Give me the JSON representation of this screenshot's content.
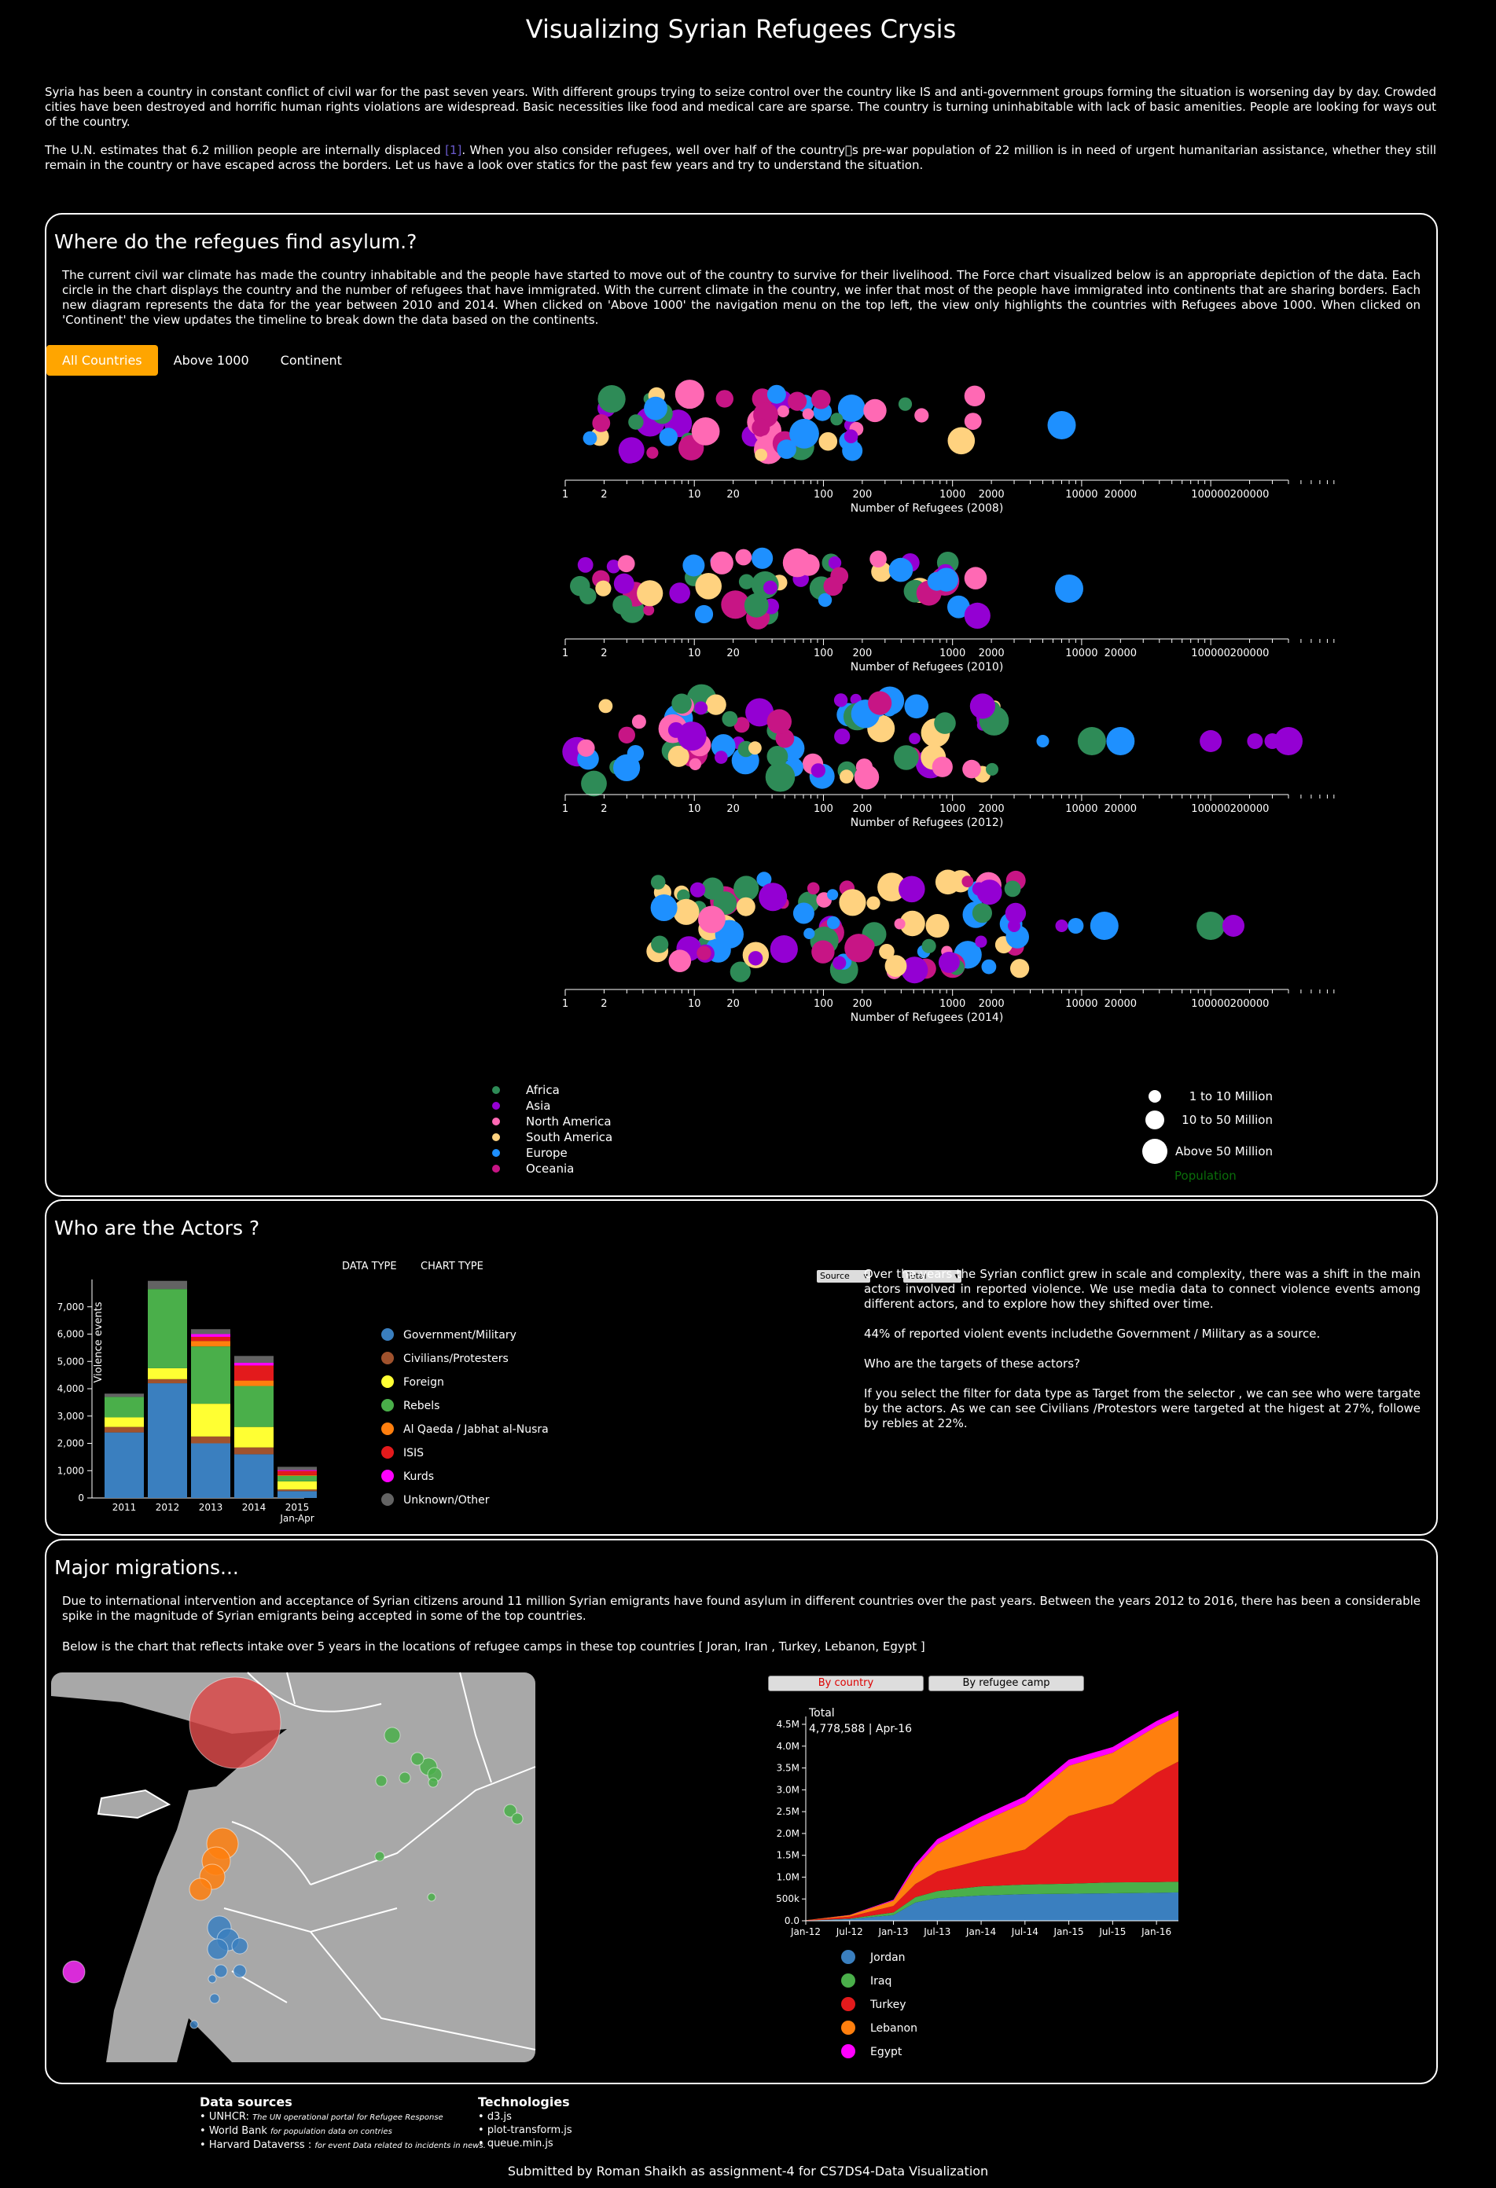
{
  "page": {
    "title": "Visualizing Syrian Refugees Crysis",
    "intro1": "Syria has been a country in constant conflict of civil war for the past seven years. With different groups trying to seize control over the country like IS and anti-government groups forming the situation is worsening day by day. Crowded cities have been destroyed and horrific human rights violations are widespread. Basic necessities like food and medical care are sparse. The country is turning uninhabitable with lack of basic amenities. People are looking for ways out of the country.",
    "intro2_a": "The U.N. estimates that 6.2 million people are internally displaced ",
    "intro2_link": "[1]",
    "intro2_b": ". When you also consider refugees, well over half of the country\u0000s pre-war population of 22 million is in need of urgent humanitarian assistance, whether they still remain in the country or have escaped across the borders. Let us have a look over statics for the past few years and try to understand the situation."
  },
  "asylum": {
    "title": "Where do the refegues find asylum.?",
    "description": "The current civil war climate has made the country inhabitable and the people have started to move out of the country to survive for their livelihood. The Force chart visualized below is an appropriate depiction of the data. Each circle in the chart displays the country and the number of refugees that have immigrated. With the current climate in the country, we infer that most of the people have immigrated into continents that are sharing borders. Each new diagram represents the data for the year between 2010 and 2014. When clicked on 'Above 1000' the navigation menu on the top left, the view only highlights the countries with Refugees above 1000. When clicked on 'Continent' the view updates the timeline to break down the data based on the continents.",
    "tabs": [
      "All Countries",
      "Above 1000",
      "Continent"
    ],
    "axis_ticks": [
      "1",
      "2",
      "10",
      "20",
      "100",
      "200",
      "1000",
      "2000",
      "10000",
      "20000",
      "100000",
      "200000"
    ],
    "axis_labels": [
      "Number of Refugees (2008)",
      "Number of Refugees (2010)",
      "Number of Refugees (2012)",
      "Number of Refugees (2014)"
    ],
    "continents": [
      {
        "name": "Africa",
        "color": "#2e8b57"
      },
      {
        "name": "Asia",
        "color": "#9400d3"
      },
      {
        "name": "North America",
        "color": "#ff69b4"
      },
      {
        "name": "South America",
        "color": "#ffd27f"
      },
      {
        "name": "Europe",
        "color": "#1e90ff"
      },
      {
        "name": "Oceania",
        "color": "#c71585"
      }
    ],
    "size_legend": [
      "1 to 10 Million",
      "10 to 50 Million",
      "Above 50 Million"
    ],
    "size_legend_title": "Population"
  },
  "actors": {
    "title": "Who are the Actors ?",
    "data_type_label": "DATA TYPE",
    "chart_type_label": "CHART TYPE",
    "data_type_value": "Source",
    "chart_type_value": "Total",
    "p1": "Over the years the Syrian conflict grew in scale and complexity, there was a shift in the main actors involved in reported violence. We use media data to connect violence events among different actors, and to explore how they shifted over time.",
    "p2": "44% of reported violent events includethe Government / Military as a source.",
    "p3": "Who are the targets of these actors?",
    "p4": "If you select the filter for data type as Target from the selector , we can see who were targate by the actors. As we can see Civilians /Protestors were targeted at the higest at 27%, followe by rebles at 22%."
  },
  "migrations": {
    "title": "Major migrations...",
    "p1": "Due to international intervention and acceptance of Syrian citizens around 11 million Syrian emigrants have found asylum in different countries over the past years. Between the years 2012 to 2016, there has been a considerable spike in the magnitude of Syrian emigrants being accepted in some of the top countries.",
    "p2": "Below is the chart that reflects intake over 5 years in the locations of refugee camps in these top countries [ Joran, Iran , Turkey, Lebanon, Egypt ]",
    "btn_country": "By country",
    "btn_camp": "By refugee camp",
    "total_label": "Total",
    "total_value": "4,778,588 | Apr-16"
  },
  "footer": {
    "sources_title": "Data sources",
    "sources": [
      {
        "name": "UNHCR:",
        "note": "The UN operational portal for Refugee Response"
      },
      {
        "name": "World Bank",
        "note": "for population data on contries"
      },
      {
        "name": "Harvard Dataverss :",
        "note": "for event Data related to incidents in news."
      }
    ],
    "tech_title": "Technologies",
    "tech": [
      "d3.js",
      "plot-transform.js",
      "queue.min.js"
    ],
    "credits": "Submitted by Roman Shaikh as assignment-4 for CS7DS4-Data Visualization"
  },
  "chart_data": [
    {
      "type": "bar",
      "title": "",
      "ylabel": "Violence events",
      "categories": [
        "2011",
        "2012",
        "2013",
        "2014",
        "2015 Jan-Apr"
      ],
      "ylim": [
        0,
        8000
      ],
      "yticks": [
        "0",
        "1,000",
        "2,000",
        "3,000",
        "4,000",
        "5,000",
        "6,000",
        "7,000"
      ],
      "series": [
        {
          "name": "Government/Military",
          "color": "#3a7fbf",
          "values": [
            2400,
            4200,
            2000,
            1600,
            250
          ]
        },
        {
          "name": "Civilians/Protesters",
          "color": "#a0522d",
          "values": [
            200,
            150,
            250,
            250,
            60
          ]
        },
        {
          "name": "Foreign",
          "color": "#ffff33",
          "values": [
            350,
            400,
            1200,
            750,
            300
          ]
        },
        {
          "name": "Rebels",
          "color": "#4aaf4a",
          "values": [
            750,
            2900,
            2100,
            1500,
            200
          ]
        },
        {
          "name": "Al Qaeda / Jabhat al-Nusra",
          "color": "#ff7f0e",
          "values": [
            0,
            0,
            200,
            200,
            30
          ]
        },
        {
          "name": "ISIS",
          "color": "#e31a1c",
          "values": [
            0,
            0,
            150,
            550,
            150
          ]
        },
        {
          "name": "Kurds",
          "color": "#ff00ff",
          "values": [
            0,
            0,
            100,
            100,
            30
          ]
        },
        {
          "name": "Unknown/Other",
          "color": "#636363",
          "values": [
            120,
            300,
            180,
            250,
            120
          ]
        }
      ]
    },
    {
      "type": "area",
      "title": "",
      "ylim": [
        0,
        4500000
      ],
      "yticks": [
        "0.0",
        "500k",
        "1.0M",
        "1.5M",
        "2.0M",
        "2.5M",
        "3.0M",
        "3.5M",
        "4.0M",
        "4.5M"
      ],
      "xticks": [
        "Jan-12",
        "Jul-12",
        "Jan-13",
        "Jul-13",
        "Jan-14",
        "Jul-14",
        "Jan-15",
        "Jul-15",
        "Jan-16"
      ],
      "x": [
        "Jan-12",
        "Jul-12",
        "Jan-13",
        "Apr-13",
        "Jul-13",
        "Jan-14",
        "Jul-14",
        "Jan-15",
        "Jul-15",
        "Jan-16",
        "Apr-16"
      ],
      "series": [
        {
          "name": "Jordan",
          "color": "#3a7fbf",
          "values": [
            5000,
            40000,
            130000,
            420000,
            520000,
            580000,
            610000,
            620000,
            630000,
            640000,
            650000
          ]
        },
        {
          "name": "Iraq",
          "color": "#4aaf4a",
          "values": [
            0,
            10000,
            60000,
            120000,
            160000,
            210000,
            220000,
            230000,
            250000,
            245000,
            246000
          ]
        },
        {
          "name": "Turkey",
          "color": "#e31a1c",
          "values": [
            5000,
            45000,
            150000,
            300000,
            450000,
            600000,
            800000,
            1550000,
            1800000,
            2500000,
            2750000
          ]
        },
        {
          "name": "Lebanon",
          "color": "#ff7f0e",
          "values": [
            5000,
            35000,
            120000,
            380000,
            620000,
            870000,
            1080000,
            1150000,
            1170000,
            1070000,
            1050000
          ]
        },
        {
          "name": "Egypt",
          "color": "#ff00ff",
          "values": [
            0,
            5000,
            20000,
            80000,
            120000,
            130000,
            140000,
            140000,
            130000,
            118000,
            118000
          ]
        }
      ]
    }
  ]
}
